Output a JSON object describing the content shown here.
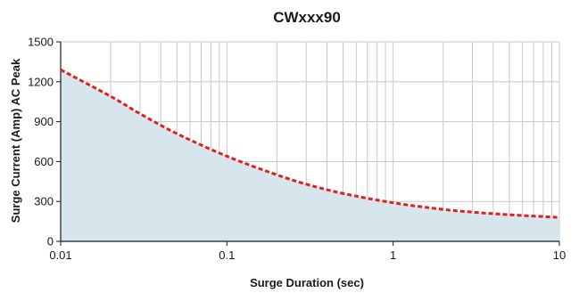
{
  "chart_data": {
    "type": "area",
    "title": "CWxxx90",
    "xlabel": "Surge Duration (sec)",
    "ylabel": "Surge Current (Amp) AC Peak",
    "x_scale": "log",
    "xlim": [
      0.01,
      10
    ],
    "ylim": [
      0,
      1500
    ],
    "x_ticks": [
      0.01,
      0.1,
      1,
      10
    ],
    "x_tick_labels": [
      "0.01",
      "0.1",
      "1",
      "10"
    ],
    "y_ticks": [
      0,
      300,
      600,
      900,
      1200,
      1500
    ],
    "y_tick_labels": [
      "0",
      "300",
      "600",
      "900",
      "1200",
      "1500"
    ],
    "grid": true,
    "series": [
      {
        "x": [
          0.01,
          0.02,
          0.03,
          0.05,
          0.1,
          0.2,
          0.3,
          0.5,
          1,
          2,
          3,
          5,
          10
        ],
        "y": [
          1290,
          1090,
          960,
          810,
          640,
          500,
          430,
          360,
          290,
          240,
          220,
          200,
          180
        ]
      }
    ],
    "colors": {
      "line": "#e02020",
      "fill": "#d7e5ec",
      "grid": "#c8c8c8",
      "axis": "#1a1a1a"
    }
  }
}
